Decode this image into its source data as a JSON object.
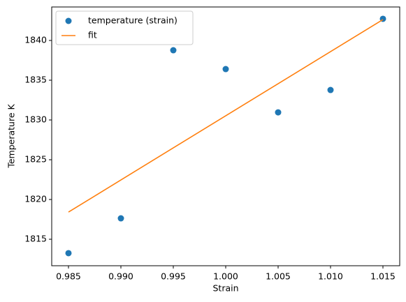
{
  "chart_data": {
    "type": "scatter",
    "xlabel": "Strain",
    "ylabel": "Temperature K",
    "xlim": [
      0.9834,
      1.0166
    ],
    "ylim": [
      1811.67,
      1844.21
    ],
    "xticks": [
      0.985,
      {
        "value": 0.99,
        "label": "0.990"
      },
      0.995,
      {
        "value": 1,
        "label": "1.000"
      },
      1.005,
      {
        "value": 1.01,
        "label": "1.010"
      },
      1.015
    ],
    "yticks": [
      1815,
      1820,
      1825,
      1830,
      1835,
      1840
    ],
    "legend": "upper-left",
    "series": [
      {
        "name": "temperature (strain)",
        "type": "scatter",
        "color": "#1f77b4",
        "x": [
          0.985,
          0.99,
          0.995,
          1,
          1.005,
          1.01,
          1.015
        ],
        "values": [
          1813.25,
          1817.63,
          1838.77,
          1836.4,
          1830.96,
          1833.77,
          1842.72
        ]
      },
      {
        "name": "fit",
        "type": "line",
        "color": "#ff7f0e",
        "x": [
          0.985,
          1.015
        ],
        "values": [
          1818.42,
          1842.63
        ]
      }
    ]
  }
}
